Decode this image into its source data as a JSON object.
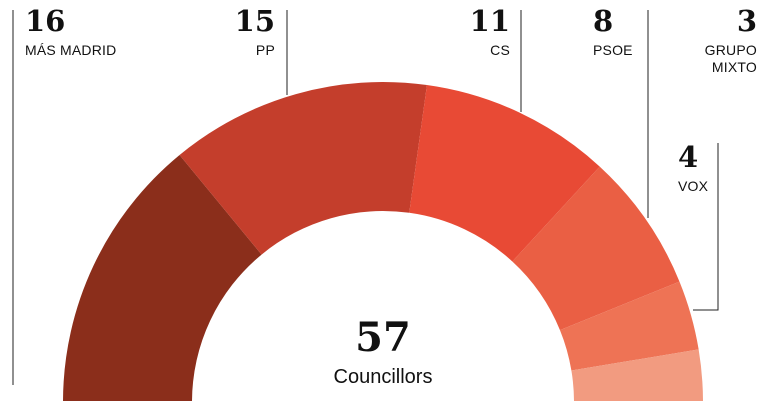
{
  "chart_data": {
    "type": "semi-donut",
    "categories": [
      "MÁS MADRID",
      "PP",
      "CS",
      "PSOE",
      "VOX",
      "GRUPO MIXTO"
    ],
    "values": [
      16,
      15,
      11,
      8,
      4,
      3
    ],
    "colors": [
      "#8b2e1b",
      "#c43e2c",
      "#e84a35",
      "#ea5f44",
      "#ee7355",
      "#f29b80"
    ],
    "total": 57,
    "total_label": "Councillors"
  }
}
